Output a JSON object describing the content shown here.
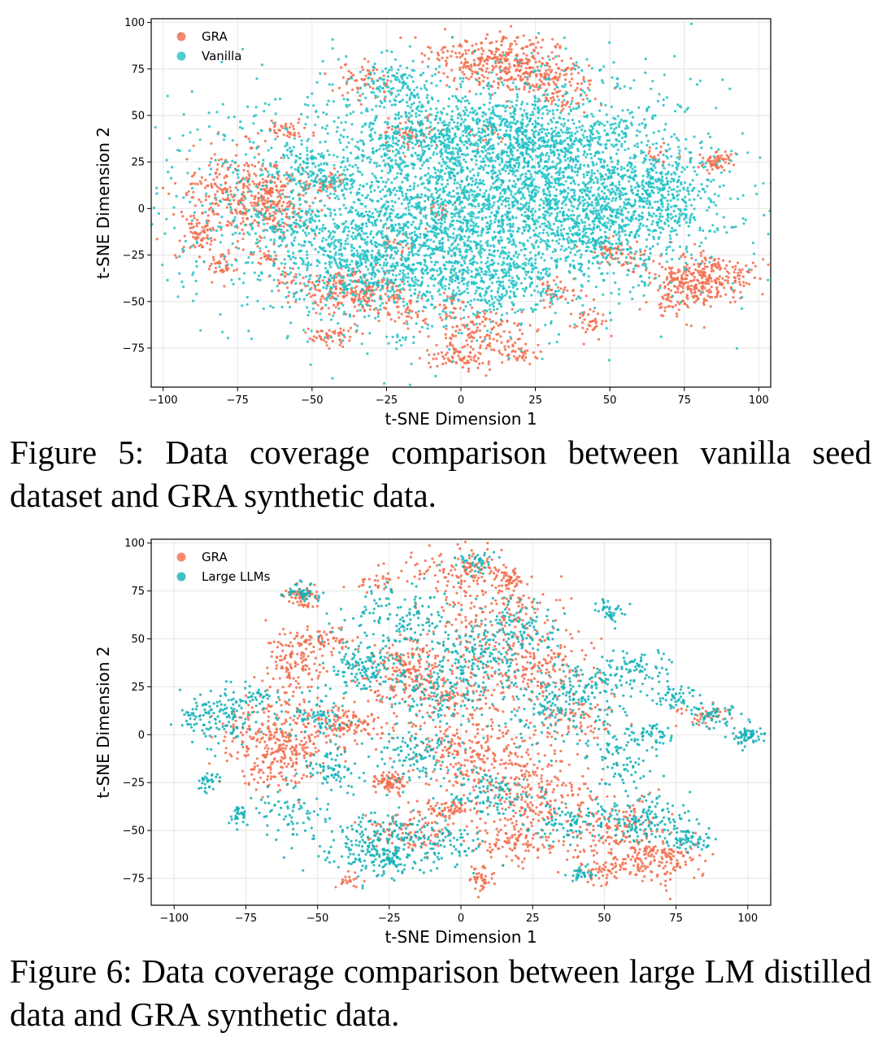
{
  "figures": [
    {
      "caption": "Figure 5: Data coverage comparison between vanilla seed dataset and GRA synthetic data.",
      "chart_data": {
        "type": "scatter",
        "title": "",
        "xlabel": "t-SNE Dimension 1",
        "ylabel": "t-SNE Dimension 2",
        "xlim": [
          -104,
          104
        ],
        "ylim": [
          -96,
          102
        ],
        "xticks": [
          -100,
          -75,
          -50,
          -25,
          0,
          25,
          50,
          75,
          100
        ],
        "yticks": [
          -75,
          -50,
          -25,
          0,
          25,
          50,
          75,
          100
        ],
        "grid": true,
        "legend_position": "top-left",
        "series": [
          {
            "name": "GRA",
            "color": "#f26b4a",
            "clusters": [
              [
                -76,
                8,
                10,
                12,
                260
              ],
              [
                -62,
                3,
                7,
                9,
                200
              ],
              [
                -88,
                -13,
                3,
                6,
                60
              ],
              [
                -81,
                -30,
                3,
                4,
                40
              ],
              [
                -58,
                42,
                4,
                3,
                40
              ],
              [
                -58,
                -38,
                3,
                3,
                20
              ],
              [
                -38,
                -42,
                9,
                6,
                150
              ],
              [
                -30,
                -48,
                8,
                5,
                100
              ],
              [
                -43,
                -68,
                4,
                3,
                50
              ],
              [
                -32,
                68,
                5,
                5,
                60
              ],
              [
                -17,
                40,
                6,
                4,
                60
              ],
              [
                -18,
                -57,
                3,
                4,
                30
              ],
              [
                12,
                80,
                12,
                7,
                320
              ],
              [
                28,
                70,
                8,
                6,
                120
              ],
              [
                36,
                59,
                5,
                4,
                40
              ],
              [
                6,
                -65,
                8,
                5,
                120
              ],
              [
                0,
                -79,
                6,
                4,
                80
              ],
              [
                18,
                -78,
                4,
                3,
                40
              ],
              [
                -4,
                -50,
                3,
                3,
                20
              ],
              [
                32,
                -45,
                3,
                4,
                40
              ],
              [
                43,
                -60,
                3,
                4,
                40
              ],
              [
                50,
                -22,
                3,
                3,
                40
              ],
              [
                56,
                -27,
                4,
                4,
                40
              ],
              [
                85,
                -37,
                7,
                6,
                200
              ],
              [
                74,
                -43,
                5,
                8,
                150
              ],
              [
                85,
                25,
                3,
                3,
                60
              ],
              [
                66,
                30,
                3,
                3,
                20
              ],
              [
                8,
                38,
                3,
                3,
                20
              ],
              [
                -8,
                0,
                3,
                3,
                20
              ],
              [
                -65,
                -26,
                2,
                2,
                20
              ],
              [
                -45,
                14,
                3,
                3,
                40
              ],
              [
                -20,
                -20,
                4,
                4,
                30
              ]
            ]
          },
          {
            "name": "Vanilla",
            "color": "#20c1c6",
            "clusters": [
              [
                -10,
                0,
                42,
                32,
                2400
              ],
              [
                20,
                10,
                32,
                28,
                1400
              ],
              [
                45,
                5,
                18,
                18,
                600
              ],
              [
                -20,
                65,
                8,
                6,
                120
              ],
              [
                -15,
                40,
                12,
                10,
                200
              ],
              [
                15,
                45,
                12,
                10,
                250
              ],
              [
                -25,
                -30,
                18,
                12,
                450
              ],
              [
                10,
                -40,
                12,
                8,
                200
              ],
              [
                50,
                45,
                6,
                4,
                40
              ],
              [
                65,
                10,
                8,
                8,
                120
              ],
              [
                50,
                -15,
                6,
                6,
                60
              ],
              [
                -50,
                20,
                6,
                6,
                80
              ],
              [
                -55,
                -10,
                6,
                6,
                80
              ],
              [
                -20,
                -70,
                2,
                2,
                10
              ],
              [
                70,
                -5,
                6,
                4,
                50
              ],
              [
                30,
                35,
                10,
                6,
                120
              ]
            ]
          }
        ]
      }
    },
    {
      "caption": "Figure 6: Data coverage comparison between large LM distilled data and GRA synthetic data.",
      "chart_data": {
        "type": "scatter",
        "title": "",
        "xlabel": "t-SNE Dimension 1",
        "ylabel": "t-SNE Dimension 2",
        "xlim": [
          -108,
          108
        ],
        "ylim": [
          -89,
          102
        ],
        "xticks": [
          -100,
          -75,
          -50,
          -25,
          0,
          25,
          50,
          75,
          100
        ],
        "yticks": [
          -75,
          -50,
          -25,
          0,
          25,
          50,
          75,
          100
        ],
        "grid": true,
        "legend_position": "top-left",
        "series": [
          {
            "name": "GRA",
            "color": "#f26b4a",
            "clusters": [
              [
                -65,
                -5,
                9,
                12,
                320
              ],
              [
                -58,
                35,
                5,
                10,
                140
              ],
              [
                -40,
                5,
                8,
                6,
                140
              ],
              [
                -55,
                72,
                3,
                3,
                60
              ],
              [
                -50,
                50,
                5,
                3,
                60
              ],
              [
                -25,
                -25,
                3,
                3,
                80
              ],
              [
                -20,
                35,
                8,
                8,
                160
              ],
              [
                0,
                85,
                8,
                6,
                120
              ],
              [
                12,
                60,
                12,
                14,
                200
              ],
              [
                18,
                80,
                3,
                3,
                40
              ],
              [
                25,
                35,
                10,
                8,
                150
              ],
              [
                -5,
                20,
                10,
                8,
                150
              ],
              [
                5,
                -10,
                12,
                10,
                250
              ],
              [
                25,
                -30,
                10,
                10,
                200
              ],
              [
                -5,
                -38,
                4,
                3,
                60
              ],
              [
                20,
                -55,
                8,
                6,
                120
              ],
              [
                7,
                -75,
                2,
                4,
                40
              ],
              [
                -40,
                -77,
                2,
                2,
                20
              ],
              [
                55,
                -50,
                8,
                8,
                150
              ],
              [
                70,
                -65,
                8,
                6,
                150
              ],
              [
                50,
                -70,
                5,
                4,
                60
              ],
              [
                85,
                10,
                4,
                3,
                40
              ],
              [
                -15,
                -50,
                8,
                5,
                100
              ],
              [
                40,
                10,
                8,
                8,
                80
              ],
              [
                -30,
                80,
                5,
                3,
                30
              ]
            ]
          },
          {
            "name": "Large LLMs",
            "color": "#10b0b6",
            "clusters": [
              [
                -85,
                10,
                7,
                7,
                150
              ],
              [
                -88,
                -25,
                2,
                3,
                30
              ],
              [
                -77,
                -42,
                2,
                3,
                30
              ],
              [
                -55,
                74,
                3,
                3,
                50
              ],
              [
                -35,
                35,
                6,
                6,
                120
              ],
              [
                -30,
                -55,
                12,
                8,
                220
              ],
              [
                -45,
                -20,
                6,
                6,
                80
              ],
              [
                -20,
                60,
                10,
                10,
                150
              ],
              [
                -10,
                25,
                10,
                10,
                150
              ],
              [
                5,
                40,
                8,
                8,
                120
              ],
              [
                20,
                55,
                8,
                8,
                120
              ],
              [
                5,
                90,
                4,
                3,
                40
              ],
              [
                30,
                15,
                10,
                10,
                150
              ],
              [
                45,
                25,
                6,
                6,
                80
              ],
              [
                55,
                -10,
                6,
                10,
                100
              ],
              [
                52,
                65,
                3,
                3,
                40
              ],
              [
                60,
                35,
                6,
                5,
                80
              ],
              [
                75,
                20,
                4,
                4,
                50
              ],
              [
                100,
                0,
                3,
                3,
                60
              ],
              [
                88,
                10,
                4,
                3,
                50
              ],
              [
                65,
                -45,
                8,
                7,
                150
              ],
              [
                80,
                -55,
                4,
                3,
                50
              ],
              [
                42,
                -72,
                3,
                2,
                30
              ],
              [
                35,
                -45,
                8,
                6,
                100
              ],
              [
                10,
                -30,
                8,
                6,
                100
              ],
              [
                -15,
                -10,
                8,
                8,
                120
              ],
              [
                -25,
                -65,
                6,
                5,
                80
              ],
              [
                -50,
                10,
                6,
                6,
                80
              ],
              [
                -70,
                20,
                3,
                3,
                30
              ],
              [
                -60,
                -40,
                6,
                6,
                60
              ],
              [
                -5,
                -55,
                6,
                6,
                60
              ],
              [
                68,
                0,
                4,
                4,
                40
              ]
            ]
          }
        ]
      }
    }
  ]
}
